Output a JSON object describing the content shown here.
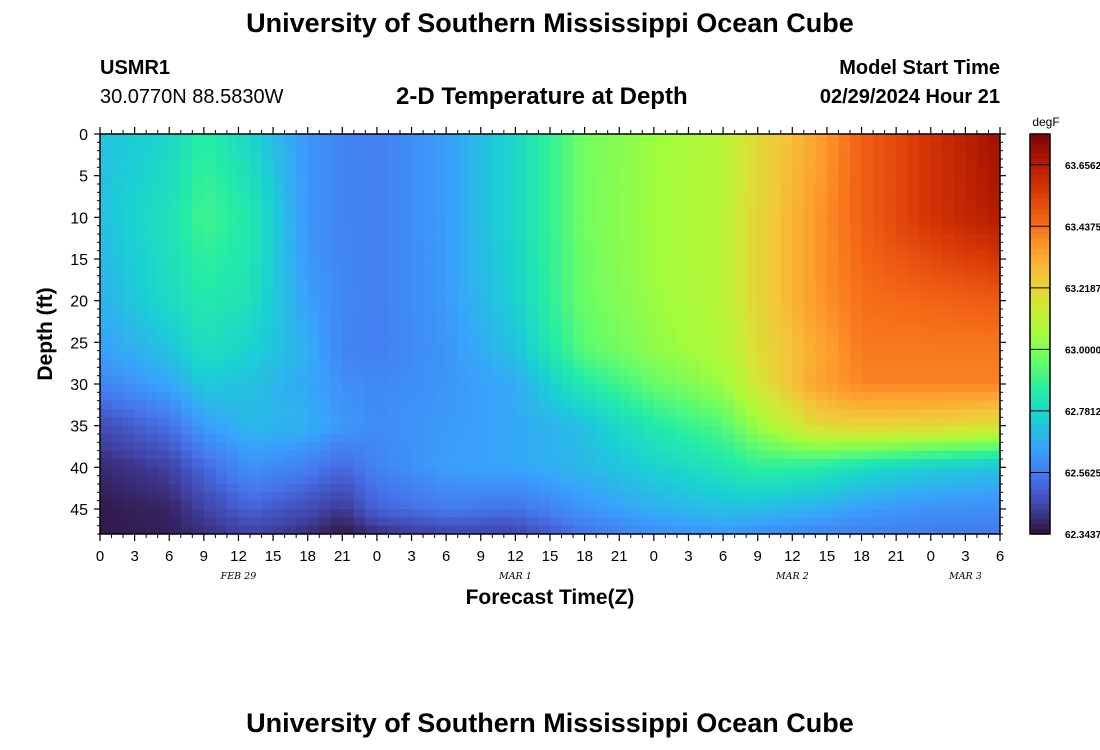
{
  "header": {
    "title": "University of Southern Mississippi Ocean Cube",
    "station": "USMR1",
    "coords": "30.0770N  88.5830W",
    "subtitle": "2-D Temperature at Depth",
    "model_label": "Model Start Time",
    "model_time": "02/29/2024 Hour 21",
    "footer_title": "University of Southern Mississippi Ocean Cube"
  },
  "chart_data": {
    "type": "heatmap",
    "title": "2-D Temperature at Depth",
    "xlabel": "Forecast Time(Z)",
    "ylabel": "Depth (ft)",
    "x_tick_labels": [
      "0",
      "3",
      "6",
      "9",
      "12",
      "15",
      "18",
      "21",
      "0",
      "3",
      "6",
      "9",
      "12",
      "15",
      "18",
      "21",
      "0",
      "3",
      "6",
      "9",
      "12",
      "15",
      "18",
      "21",
      "0",
      "3",
      "6"
    ],
    "date_labels": [
      {
        "text": "FEB 29",
        "hour_index": 12
      },
      {
        "text": "MAR 1",
        "hour_index": 36
      },
      {
        "text": "MAR 2",
        "hour_index": 60
      },
      {
        "text": "MAR 3",
        "hour_index": 75
      }
    ],
    "x_range_hours": [
      0,
      78
    ],
    "y_ticks": [
      0,
      5,
      10,
      15,
      20,
      25,
      30,
      35,
      40,
      45
    ],
    "y_range_ft": [
      0,
      48
    ],
    "y_inverted": true,
    "colorbar": {
      "unit": "degF",
      "min": 62.3437,
      "max": 63.7656,
      "tick_labels": [
        "63.6562",
        "63.4375",
        "63.2187",
        "63.0000",
        "62.7812",
        "62.5625",
        "62.3437"
      ],
      "tick_values": [
        63.6562,
        63.4375,
        63.2187,
        63.0,
        62.7812,
        62.5625,
        62.3437
      ],
      "colors": [
        "#30123b",
        "#4145ab",
        "#4675ed",
        "#39a2fc",
        "#1bcfd4",
        "#24eca6",
        "#61fc6c",
        "#a4fc3b",
        "#d1e834",
        "#f3c63a",
        "#fe9b2d",
        "#f36315",
        "#d93806",
        "#b11901",
        "#7a0402"
      ]
    },
    "temperature_field": {
      "hours": [
        0,
        6,
        9,
        13,
        18,
        21,
        24,
        30,
        36,
        42,
        48,
        54,
        57,
        62,
        66,
        72,
        78
      ],
      "depths": [
        0,
        10,
        20,
        26,
        30,
        35,
        40,
        45,
        48
      ],
      "values_degF": [
        [
          62.72,
          62.77,
          62.86,
          62.77,
          62.62,
          62.58,
          62.57,
          62.64,
          62.78,
          62.98,
          63.04,
          63.1,
          63.2,
          63.33,
          63.47,
          63.58,
          63.7
        ],
        [
          62.72,
          62.81,
          62.9,
          62.84,
          62.62,
          62.58,
          62.57,
          62.64,
          62.78,
          62.98,
          63.05,
          63.1,
          63.21,
          63.36,
          63.47,
          63.58,
          63.66
        ],
        [
          62.68,
          62.79,
          62.84,
          62.81,
          62.64,
          62.59,
          62.57,
          62.63,
          62.76,
          62.97,
          63.04,
          63.1,
          63.21,
          63.36,
          63.44,
          63.46,
          63.48
        ],
        [
          62.64,
          62.72,
          62.8,
          62.76,
          62.68,
          62.58,
          62.57,
          62.62,
          62.72,
          62.94,
          63.02,
          63.08,
          63.19,
          63.32,
          63.42,
          63.42,
          63.42
        ],
        [
          62.58,
          62.66,
          62.74,
          62.72,
          62.66,
          62.61,
          62.59,
          62.62,
          62.67,
          62.84,
          62.96,
          63.04,
          63.16,
          63.34,
          63.4,
          63.4,
          63.4
        ],
        [
          62.46,
          62.54,
          62.64,
          62.7,
          62.68,
          62.63,
          62.6,
          62.63,
          62.66,
          62.72,
          62.84,
          62.93,
          63.04,
          63.2,
          63.23,
          63.22,
          63.18
        ],
        [
          62.39,
          62.44,
          62.52,
          62.61,
          62.57,
          62.52,
          62.58,
          62.64,
          62.66,
          62.7,
          62.76,
          62.82,
          62.87,
          62.85,
          62.8,
          62.75,
          62.72
        ],
        [
          62.36,
          62.38,
          62.44,
          62.51,
          62.46,
          62.42,
          62.51,
          62.56,
          62.54,
          62.62,
          62.68,
          62.72,
          62.71,
          62.68,
          62.64,
          62.61,
          62.6
        ],
        [
          62.36,
          62.37,
          62.4,
          62.44,
          62.4,
          62.35,
          62.4,
          62.44,
          62.44,
          62.54,
          62.6,
          62.62,
          62.6,
          62.58,
          62.57,
          62.56,
          62.56
        ]
      ]
    }
  }
}
